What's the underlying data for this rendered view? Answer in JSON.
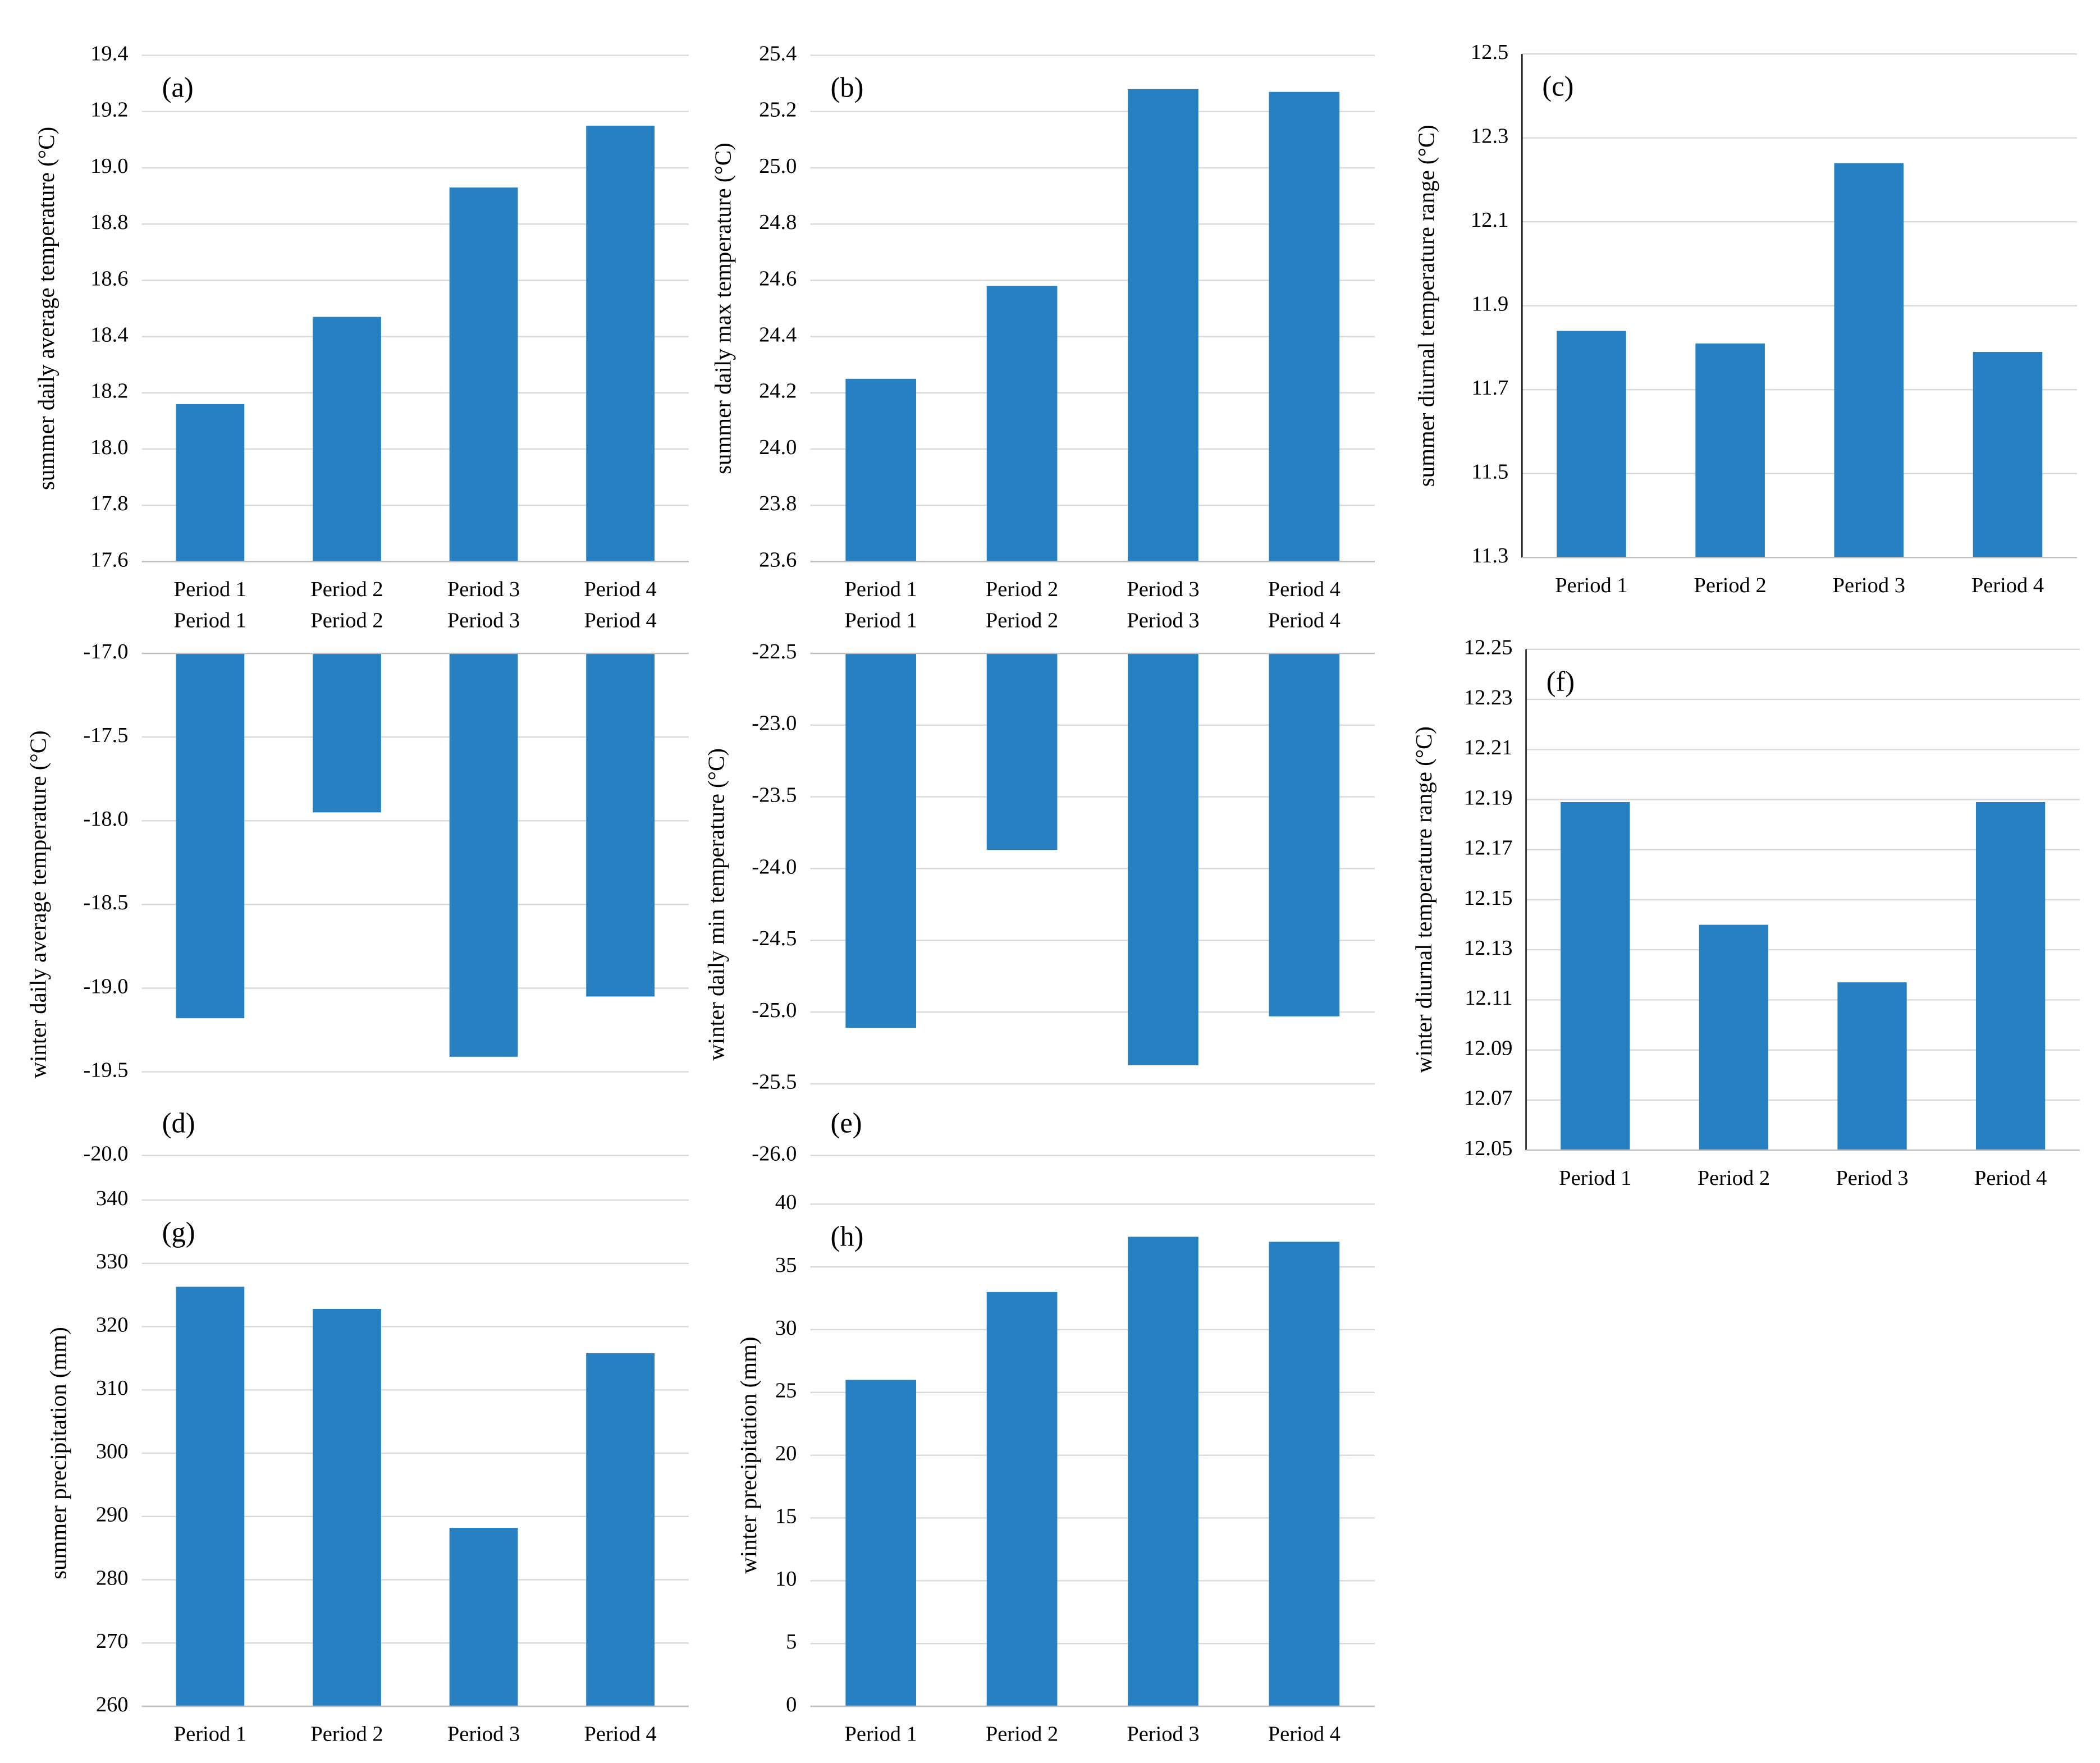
{
  "chart_data": [
    {
      "type": "bar",
      "annotation": "(a)",
      "y_label": "summer daily average temperature (°C)",
      "categories": [
        "Period 1",
        "Period 2",
        "Period 3",
        "Period 4"
      ],
      "values": [
        18.16,
        18.47,
        18.93,
        19.15
      ],
      "color": "#2680c2",
      "ylim": [
        17.6,
        19.4
      ],
      "yticks": [
        17.6,
        17.8,
        {
          "value": 18,
          "label": "18.0"
        },
        18.2,
        18.4,
        18.6,
        18.8,
        {
          "value": 19,
          "label": "19.0"
        },
        19.2,
        19.4
      ],
      "grid": true
    },
    {
      "type": "bar",
      "annotation": "(b)",
      "y_label": "summer daily max temperature (°C)",
      "categories": [
        "Period 1",
        "Period 2",
        "Period 3",
        "Period 4"
      ],
      "values": [
        24.25,
        24.58,
        25.28,
        25.27
      ],
      "color": "#2680c2",
      "ylim": [
        23.6,
        25.4
      ],
      "yticks": [
        23.6,
        23.8,
        {
          "value": 24,
          "label": "24.0"
        },
        24.2,
        24.4,
        24.6,
        24.8,
        {
          "value": 25,
          "label": "25.0"
        },
        25.2,
        25.4
      ],
      "grid": true
    },
    {
      "type": "bar",
      "annotation": "(c)",
      "y_label": "summer diurnal temperature range (°C)",
      "categories": [
        "Period 1",
        "Period 2",
        "Period 3",
        "Period 4"
      ],
      "values": [
        11.84,
        11.81,
        12.24,
        11.79
      ],
      "color": "#2680c2",
      "ylim": [
        11.3,
        12.5
      ],
      "yticks": [
        11.3,
        11.5,
        11.7,
        11.9,
        12.1,
        12.3,
        12.5
      ],
      "grid": true
    },
    {
      "type": "bar",
      "annotation": "(d)",
      "y_label": "winter daily average temperature (°C)",
      "categories": [
        "Period 1",
        "Period 2",
        "Period 3",
        "Period 4"
      ],
      "values": [
        -19.18,
        -17.95,
        -19.41,
        -19.05
      ],
      "color": "#2680c2",
      "ylim": [
        -20,
        -17
      ],
      "yticks": [
        {
          "value": -20,
          "label": "-20.0"
        },
        -19.5,
        {
          "value": -19,
          "label": "-19.0"
        },
        -18.5,
        {
          "value": -18,
          "label": "-18.0"
        },
        -17.5,
        {
          "value": -17,
          "label": "-17.0"
        }
      ],
      "grid": true
    },
    {
      "type": "bar",
      "annotation": "(e)",
      "y_label": "winter daily min temperature (°C)",
      "categories": [
        "Period 1",
        "Period 2",
        "Period 3",
        "Period 4"
      ],
      "values": [
        -25.11,
        -23.87,
        -25.37,
        -25.03
      ],
      "color": "#2680c2",
      "ylim": [
        -26,
        -22.5
      ],
      "yticks": [
        {
          "value": -26,
          "label": "-26.0"
        },
        -25.5,
        {
          "value": -25,
          "label": "-25.0"
        },
        -24.5,
        {
          "value": -24,
          "label": "-24.0"
        },
        -23.5,
        {
          "value": -23,
          "label": "-23.0"
        },
        -22.5
      ],
      "grid": true
    },
    {
      "type": "bar",
      "annotation": "(f)",
      "y_label": "winter diurnal temperature range (°C)",
      "categories": [
        "Period 1",
        "Period 2",
        "Period 3",
        "Period 4"
      ],
      "values": [
        12.189,
        12.14,
        12.117,
        12.189
      ],
      "color": "#2680c2",
      "ylim": [
        12.05,
        12.25
      ],
      "yticks": [
        12.05,
        12.07,
        12.09,
        12.11,
        12.13,
        12.15,
        12.17,
        12.19,
        12.21,
        12.23,
        12.25
      ],
      "grid": true
    },
    {
      "type": "bar",
      "annotation": "(g)",
      "y_label": "summer precipitation (mm)",
      "categories": [
        "Period 1",
        "Period 2",
        "Period 3",
        "Period 4"
      ],
      "values": [
        326.3,
        322.8,
        288.2,
        315.8
      ],
      "color": "#2680c2",
      "ylim": [
        260,
        340
      ],
      "yticks": [
        260,
        270,
        280,
        290,
        300,
        310,
        320,
        330,
        340
      ],
      "grid": true
    },
    {
      "type": "bar",
      "annotation": "(h)",
      "y_label": "winter precipitation (mm)",
      "categories": [
        "Period 1",
        "Period 2",
        "Period 3",
        "Period 4"
      ],
      "values": [
        26,
        33,
        37.4,
        37
      ],
      "color": "#2680c2",
      "ylim": [
        0,
        40
      ],
      "yticks": [
        0,
        5,
        10,
        15,
        20,
        25,
        30,
        35,
        40
      ],
      "grid": true
    }
  ]
}
